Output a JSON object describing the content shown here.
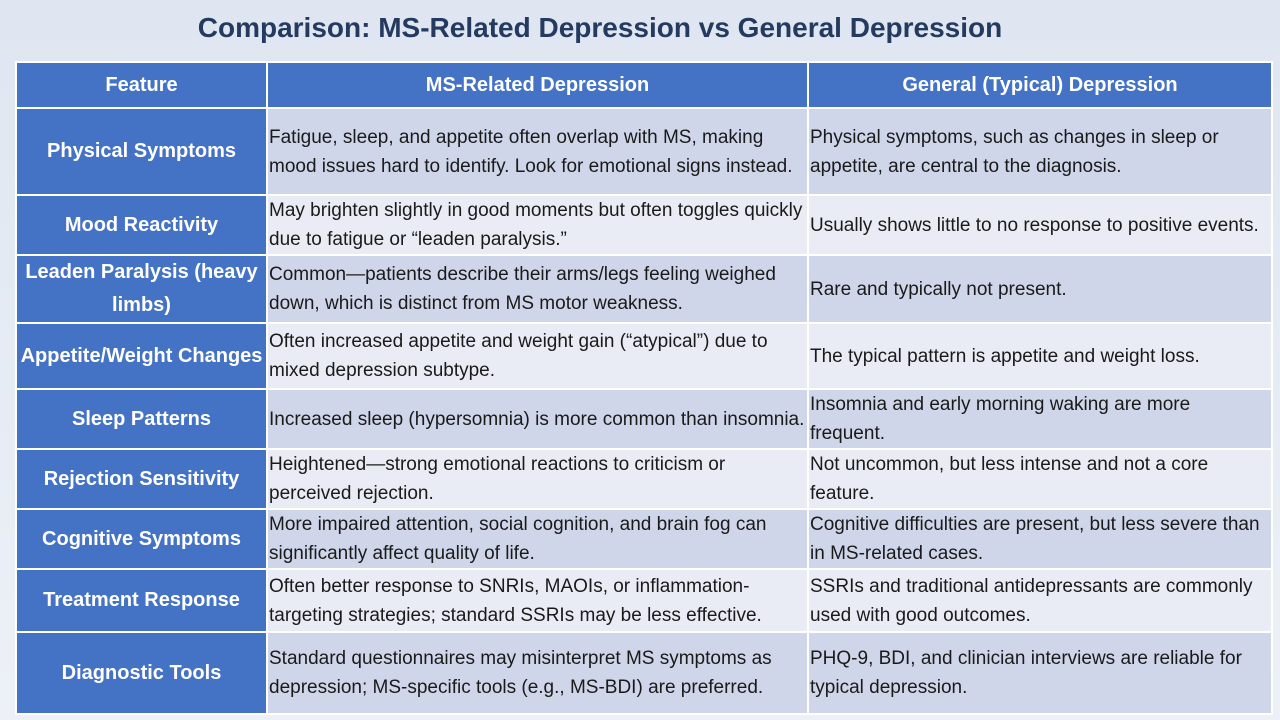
{
  "title": "Comparison: MS-Related Depression vs General Depression",
  "headers": [
    "Feature",
    "MS-Related Depression",
    "General (Typical) Depression"
  ],
  "rows": [
    {
      "feature": "Physical Symptoms",
      "ms": "Fatigue, sleep, and appetite often overlap with MS, making mood issues hard to identify. Look for emotional signs instead.",
      "general": "Physical symptoms, such as changes in sleep or appetite, are central to the diagnosis."
    },
    {
      "feature": "Mood Reactivity",
      "ms": "May brighten slightly in good moments but often toggles quickly due to fatigue or “leaden paralysis.”",
      "general": "Usually shows little to no response to positive events."
    },
    {
      "feature": "Leaden Paralysis (heavy limbs)",
      "ms": "Common—patients describe their arms/legs feeling weighed down, which is distinct from MS motor weakness.",
      "general": "Rare and typically not present."
    },
    {
      "feature": "Appetite/Weight Changes",
      "ms": "Often increased appetite and weight gain (“atypical”) due to mixed depression subtype.",
      "general": "The typical pattern is appetite and weight loss."
    },
    {
      "feature": "Sleep Patterns",
      "ms": "Increased sleep (hypersomnia) is more common than insomnia.",
      "general": "Insomnia and early morning waking are more frequent."
    },
    {
      "feature": "Rejection Sensitivity",
      "ms": "Heightened—strong emotional reactions to criticism or perceived rejection.",
      "general": "Not uncommon, but less intense and not a core feature."
    },
    {
      "feature": "Cognitive Symptoms",
      "ms": "More impaired attention, social cognition, and brain fog can significantly affect quality of life.",
      "general": "Cognitive difficulties are present, but less severe than in MS-related cases."
    },
    {
      "feature": "Treatment Response",
      "ms": "Often better response to SNRIs, MAOIs, or inflammation-targeting strategies; standard SSRIs may be less effective.",
      "general": "SSRIs and traditional antidepressants are commonly used with good outcomes."
    },
    {
      "feature": "Diagnostic Tools",
      "ms": "Standard questionnaires may misinterpret MS symptoms as depression; MS-specific tools (e.g., MS-BDI) are preferred.",
      "general": "PHQ-9, BDI, and clinician interviews are reliable for typical depression."
    }
  ]
}
